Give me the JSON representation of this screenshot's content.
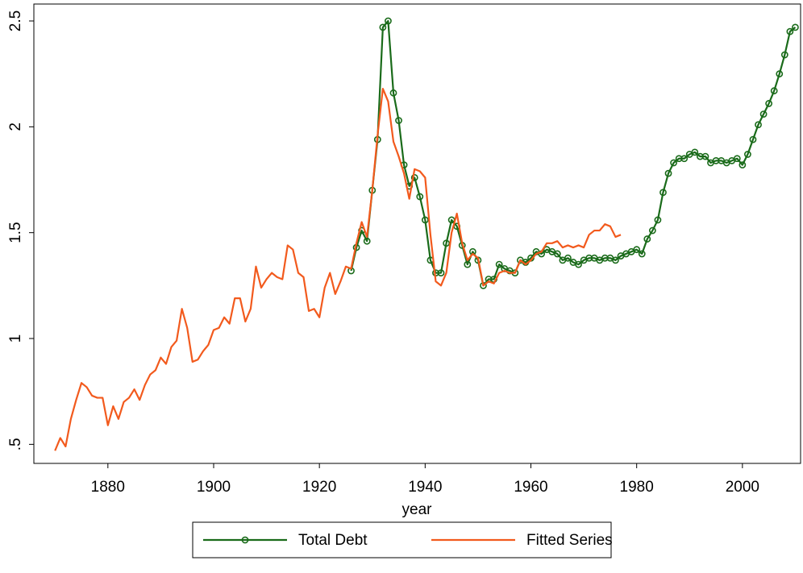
{
  "chart_data": {
    "type": "line",
    "xlabel": "year",
    "xlim": [
      1866,
      2011
    ],
    "ylim": [
      0.41,
      2.58
    ],
    "xticks": [
      1880,
      1900,
      1920,
      1940,
      1960,
      1980,
      2000
    ],
    "yticks": [
      {
        "value": 0.5,
        "label": ".5"
      },
      1,
      1.5,
      2,
      2.5
    ],
    "grid": false,
    "legend": "bottom",
    "series": [
      {
        "name": "Total Debt",
        "color": "#1a6b1a",
        "marker": "circle",
        "x": [
          1926,
          1927,
          1928,
          1929,
          1930,
          1931,
          1932,
          1933,
          1934,
          1935,
          1936,
          1937,
          1938,
          1939,
          1940,
          1941,
          1942,
          1943,
          1944,
          1945,
          1946,
          1947,
          1948,
          1949,
          1950,
          1951,
          1952,
          1953,
          1954,
          1955,
          1956,
          1957,
          1958,
          1959,
          1960,
          1961,
          1962,
          1963,
          1964,
          1965,
          1966,
          1967,
          1968,
          1969,
          1970,
          1971,
          1972,
          1973,
          1974,
          1975,
          1976,
          1977,
          1978,
          1979,
          1980,
          1981,
          1982,
          1983,
          1984,
          1985,
          1986,
          1987,
          1988,
          1989,
          1990,
          1991,
          1992,
          1993,
          1994,
          1995,
          1996,
          1997,
          1998,
          1999,
          2000,
          2001,
          2002,
          2003,
          2004,
          2005,
          2006,
          2007,
          2008,
          2009,
          2010
        ],
        "values": [
          1.32,
          1.43,
          1.51,
          1.46,
          1.7,
          1.94,
          2.47,
          2.5,
          2.16,
          2.03,
          1.82,
          1.72,
          1.76,
          1.67,
          1.56,
          1.37,
          1.31,
          1.31,
          1.45,
          1.56,
          1.53,
          1.44,
          1.35,
          1.41,
          1.37,
          1.25,
          1.28,
          1.28,
          1.35,
          1.33,
          1.32,
          1.31,
          1.37,
          1.36,
          1.38,
          1.41,
          1.4,
          1.42,
          1.41,
          1.4,
          1.37,
          1.38,
          1.36,
          1.35,
          1.37,
          1.38,
          1.38,
          1.37,
          1.38,
          1.38,
          1.37,
          1.39,
          1.4,
          1.41,
          1.42,
          1.4,
          1.47,
          1.51,
          1.56,
          1.69,
          1.78,
          1.83,
          1.85,
          1.85,
          1.87,
          1.88,
          1.86,
          1.86,
          1.83,
          1.84,
          1.84,
          1.83,
          1.84,
          1.85,
          1.82,
          1.87,
          1.94,
          2.01,
          2.06,
          2.11,
          2.17,
          2.25,
          2.34,
          2.45,
          2.47
        ]
      },
      {
        "name": "Fitted Series",
        "color": "#f25a1d",
        "x": [
          1870,
          1871,
          1872,
          1873,
          1874,
          1875,
          1876,
          1877,
          1878,
          1879,
          1880,
          1881,
          1882,
          1883,
          1884,
          1885,
          1886,
          1887,
          1888,
          1889,
          1890,
          1891,
          1892,
          1893,
          1894,
          1895,
          1896,
          1897,
          1898,
          1899,
          1900,
          1901,
          1902,
          1903,
          1904,
          1905,
          1906,
          1907,
          1908,
          1909,
          1910,
          1911,
          1912,
          1913,
          1914,
          1915,
          1916,
          1917,
          1918,
          1919,
          1920,
          1921,
          1922,
          1923,
          1924,
          1925,
          1926,
          1927,
          1928,
          1929,
          1930,
          1931,
          1932,
          1933,
          1934,
          1935,
          1936,
          1937,
          1938,
          1939,
          1940,
          1941,
          1942,
          1943,
          1944,
          1945,
          1946,
          1947,
          1948,
          1949,
          1950,
          1951,
          1952,
          1953,
          1954,
          1955,
          1956,
          1957,
          1958,
          1959,
          1960,
          1961,
          1962,
          1963,
          1964,
          1965,
          1966,
          1967,
          1968,
          1969,
          1970,
          1971,
          1972,
          1973,
          1974,
          1975,
          1976,
          1977
        ],
        "values": [
          0.47,
          0.53,
          0.49,
          0.62,
          0.71,
          0.79,
          0.77,
          0.73,
          0.72,
          0.72,
          0.59,
          0.68,
          0.62,
          0.7,
          0.72,
          0.76,
          0.71,
          0.78,
          0.83,
          0.85,
          0.91,
          0.88,
          0.96,
          0.99,
          1.14,
          1.05,
          0.89,
          0.9,
          0.94,
          0.97,
          1.04,
          1.05,
          1.1,
          1.07,
          1.19,
          1.19,
          1.08,
          1.14,
          1.34,
          1.24,
          1.28,
          1.31,
          1.29,
          1.28,
          1.44,
          1.42,
          1.31,
          1.29,
          1.13,
          1.14,
          1.1,
          1.24,
          1.31,
          1.21,
          1.27,
          1.34,
          1.33,
          1.45,
          1.55,
          1.48,
          1.7,
          1.96,
          2.18,
          2.12,
          1.93,
          1.86,
          1.78,
          1.66,
          1.8,
          1.79,
          1.76,
          1.49,
          1.27,
          1.25,
          1.31,
          1.5,
          1.59,
          1.45,
          1.37,
          1.4,
          1.38,
          1.25,
          1.27,
          1.26,
          1.31,
          1.32,
          1.31,
          1.31,
          1.37,
          1.35,
          1.37,
          1.4,
          1.41,
          1.45,
          1.45,
          1.46,
          1.43,
          1.44,
          1.43,
          1.44,
          1.43,
          1.49,
          1.51,
          1.51,
          1.54,
          1.53,
          1.48,
          1.49
        ]
      }
    ]
  }
}
